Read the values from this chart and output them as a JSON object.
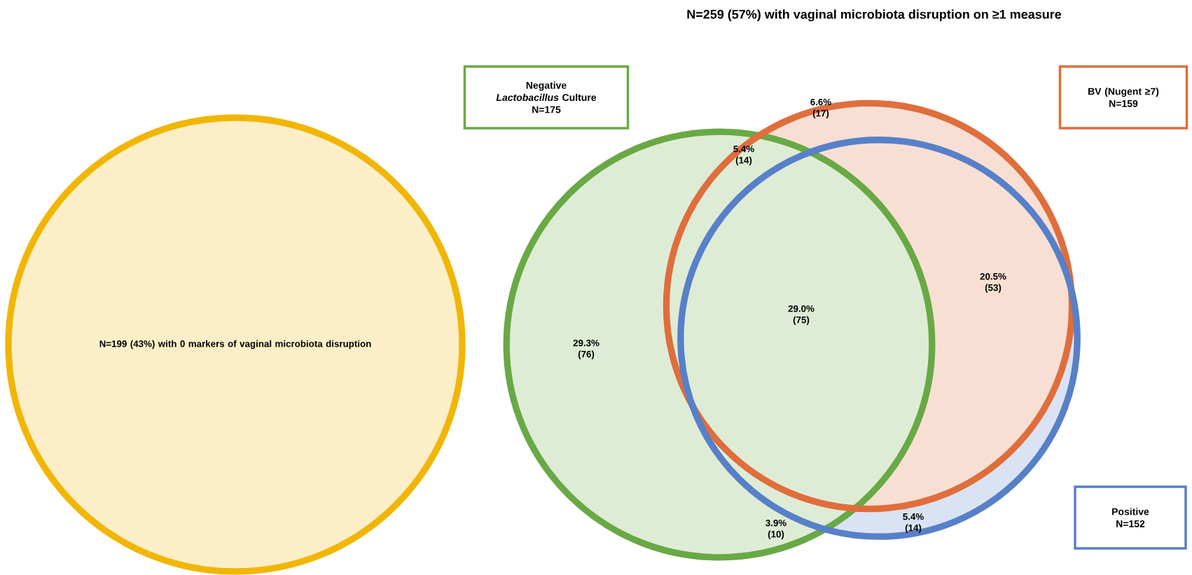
{
  "chart_data": {
    "type": "other",
    "title": "N=259 (57%) with vaginal microbiota disruption on ≥1 measure",
    "categories": [
      "with 0 markers of vaginal microbiota disruption",
      "Negative *Lactobacillus* Culture",
      "BV (Nugent ≥7)",
      "Positive"
    ],
    "values": [
      199,
      175,
      159,
      152
    ],
    "value_labels": [
      "N=199 (43%)",
      "N=175",
      "N=159",
      "N=152"
    ],
    "colors": [
      "#fcefc8",
      "#deecd6",
      "#f8dfd4",
      "#dae3f3"
    ],
    "annotations": [
      "6.6% (17)",
      "5.4% (14)",
      "29.0% (75)",
      "29.3% (76)",
      "20.5% (53)",
      "3.9% (10)",
      "5.4% (14)"
    ]
  }
}
